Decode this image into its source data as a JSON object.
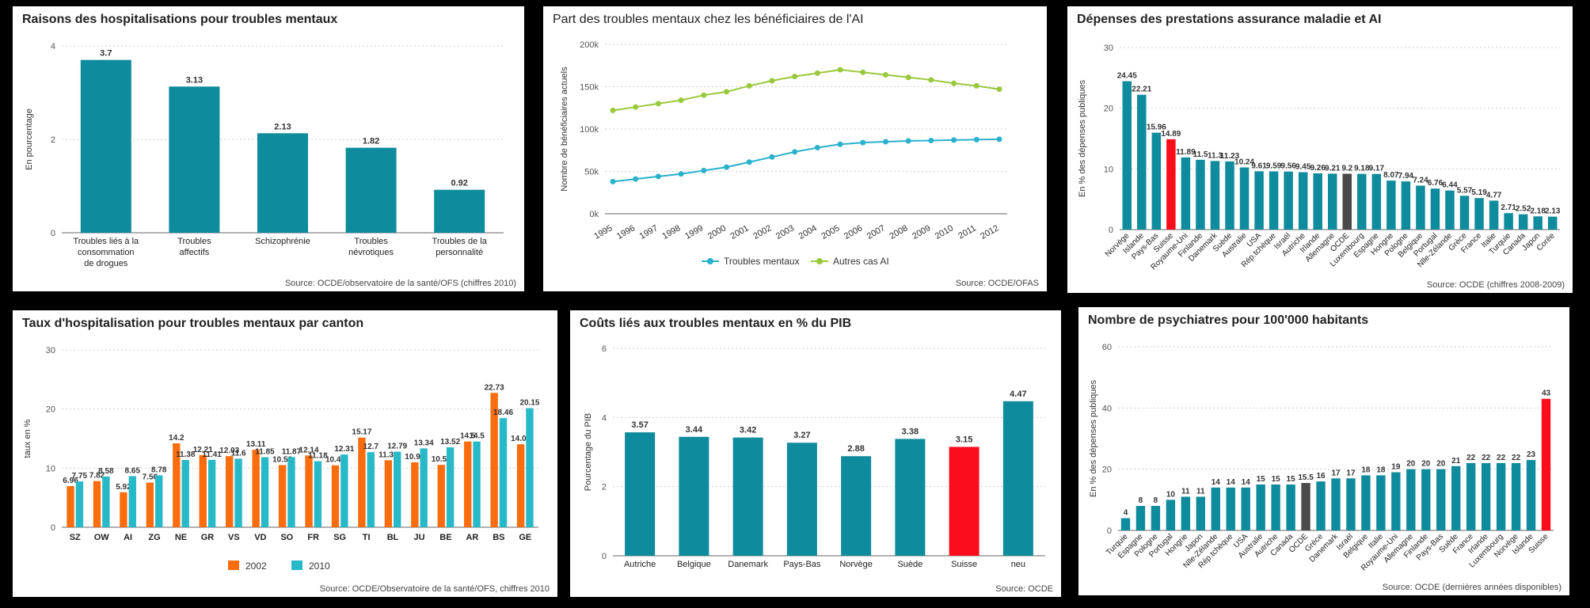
{
  "colors": {
    "teal": "#0e8b9c",
    "red": "#fb0d1c",
    "gray": "#4a4a4a",
    "orange": "#f96d0e",
    "cyan": "#28b9c9",
    "line1": "#2ab1cc",
    "line2": "#9ac83c"
  },
  "chart_data": [
    {
      "type": "bar",
      "title": "Raisons des hospitalisations pour troubles mentaux",
      "ylabel": "En pourcentage",
      "ylim": [
        0,
        4
      ],
      "yticks": [
        0,
        2,
        4
      ],
      "categories": [
        "Troubles liés à la consommation de drogues",
        "Troubles affectifs",
        "Schizophrénie",
        "Troubles névrotiques",
        "Troubles de la personnalité"
      ],
      "category_lines": [
        [
          "Troubles liés à la",
          "consommation",
          "de drogues"
        ],
        [
          "Troubles",
          "affectifs"
        ],
        [
          "Schizophrénie"
        ],
        [
          "Troubles",
          "névrotiques"
        ],
        [
          "Troubles de la",
          "personnalité"
        ]
      ],
      "values": [
        3.7,
        3.13,
        2.13,
        1.82,
        0.92
      ],
      "value_labels": [
        "3.7",
        "3.13",
        "2.13",
        "1.82",
        "0.92"
      ],
      "source": "Source: OCDE/observatoire de la santé/OFS (chiffres 2010)"
    },
    {
      "type": "line",
      "title": "Part des troubles mentaux chez les bénéficiaires de l'AI",
      "ylabel": "Nombre de bénéficiaires actuels",
      "ylim": [
        0,
        200000
      ],
      "yticks": [
        0,
        50000,
        100000,
        150000,
        200000
      ],
      "ytick_labels": [
        "0k",
        "50k",
        "100k",
        "150k",
        "200k"
      ],
      "x": [
        "1995",
        "1996",
        "1997",
        "1998",
        "1999",
        "2000",
        "2001",
        "2002",
        "2003",
        "2004",
        "2005",
        "2006",
        "2007",
        "2008",
        "2009",
        "2010",
        "2011",
        "2012"
      ],
      "series": [
        {
          "name": "Troubles mentaux",
          "values": [
            38000,
            41000,
            44000,
            47000,
            51000,
            55000,
            61000,
            67000,
            73000,
            78000,
            82000,
            84000,
            85000,
            86000,
            86500,
            87000,
            87500,
            88000
          ]
        },
        {
          "name": "Autres cas AI",
          "values": [
            122000,
            126000,
            130000,
            134000,
            140000,
            144000,
            151000,
            157000,
            162000,
            166000,
            170000,
            167000,
            164000,
            161000,
            158000,
            154000,
            151000,
            147000
          ]
        }
      ],
      "source": "Source: OCDE/OFAS"
    },
    {
      "type": "bar",
      "title": "Dépenses des prestations assurance maladie et AI",
      "ylabel": "En % des dépenses publiques",
      "ylim": [
        0,
        30
      ],
      "yticks": [
        0,
        10,
        20,
        30
      ],
      "categories": [
        "Norvège",
        "Islande",
        "Pays-Bas",
        "Suisse",
        "Royaume-Uni",
        "Finlande",
        "Danemark",
        "Suède",
        "Australie",
        "USA",
        "Rép.tchèque",
        "Israël",
        "Autriche",
        "Irlande",
        "Allemagne",
        "OCDE",
        "Luxembourg",
        "Espagne",
        "Hongrie",
        "Pologne",
        "Belgique",
        "Portugal",
        "Nlle-Zélande",
        "Grèce",
        "France",
        "Italie",
        "Turquie",
        "Canada",
        "Japon",
        "Corée"
      ],
      "values": [
        24.45,
        22.21,
        15.96,
        14.89,
        11.89,
        11.5,
        11.3,
        11.23,
        10.24,
        9.61,
        9.59,
        9.56,
        9.45,
        9.26,
        9.21,
        9.2,
        9.18,
        9.17,
        8.07,
        7.94,
        7.24,
        6.76,
        6.44,
        5.57,
        5.19,
        4.77,
        2.71,
        2.52,
        2.18,
        2.13
      ],
      "value_labels": [
        "24.45",
        "22.21",
        "15.96",
        "14.89",
        "11.89",
        "11.5",
        "11.3",
        "11.23",
        "10.24",
        "9.61",
        "9.59",
        "9.56",
        "9.45",
        "9.26",
        "9.21",
        "9.2",
        "9.18",
        "9.17",
        "8.07",
        "7.94",
        "7.24",
        "6.76",
        "6.44",
        "5.57",
        "5.19",
        "4.77",
        "2.71",
        "2.52",
        "2.18",
        "2.13"
      ],
      "highlight": {
        "Suisse": "red",
        "OCDE": "gray"
      },
      "source": "Source: OCDE (chiffres 2008-2009)"
    },
    {
      "type": "bar",
      "title": "Taux d'hospitalisation pour troubles mentaux par canton",
      "ylabel": "taux en %",
      "ylim": [
        0,
        30
      ],
      "yticks": [
        0,
        10,
        20,
        30
      ],
      "categories": [
        "SZ",
        "OW",
        "AI",
        "ZG",
        "NE",
        "GR",
        "VS",
        "VD",
        "SO",
        "FR",
        "SG",
        "TI",
        "BL",
        "JU",
        "BE",
        "AR",
        "BS",
        "GE"
      ],
      "series": [
        {
          "name": "2002",
          "values": [
            6.96,
            7.82,
            5.92,
            7.56,
            14.2,
            12.21,
            12.03,
            13.11,
            10.52,
            12.14,
            10.48,
            15.17,
            11.34,
            10.99,
            10.55,
            14.5,
            22.73,
            14.04
          ],
          "value_labels": [
            "6.96",
            "7.82",
            "5.92",
            "7.56",
            "14.2",
            "12.21",
            "12.03",
            "13.11",
            "10.52",
            "12.14",
            "10.48",
            "15.17",
            "11.34",
            "10.99",
            "10.55",
            "14.5",
            "22.73",
            "14.04"
          ]
        },
        {
          "name": "2010",
          "values": [
            7.75,
            8.58,
            8.65,
            8.78,
            11.38,
            11.41,
            11.6,
            11.85,
            11.87,
            11.18,
            12.31,
            12.7,
            12.79,
            13.34,
            13.52,
            14.5,
            18.46,
            20.15
          ],
          "value_labels": [
            "7.75",
            "8.58",
            "8.65",
            "8.78",
            "11.38",
            "11.41",
            "11.6",
            "11.85",
            "11.87",
            "11.18",
            "12.31",
            "12.7",
            "12.79",
            "13.34",
            "13.52",
            "14.5",
            "18.46",
            "20.15"
          ]
        }
      ],
      "source": "Source: OCDE/Observatoire de la santé/OFS, chiffres 2010"
    },
    {
      "type": "bar",
      "title": "Coûts liés aux troubles mentaux en % du PIB",
      "ylabel": "Pourcentage du PIB",
      "ylim": [
        0,
        6
      ],
      "yticks": [
        0,
        2,
        4,
        6
      ],
      "categories": [
        "Autriche",
        "Belgique",
        "Danemark",
        "Pays-Bas",
        "Norvège",
        "Suède",
        "Suisse",
        "neu"
      ],
      "values": [
        3.57,
        3.44,
        3.42,
        3.27,
        2.88,
        3.38,
        3.15,
        4.47
      ],
      "value_labels": [
        "3.57",
        "3.44",
        "3.42",
        "3.27",
        "2.88",
        "3.38",
        "3.15",
        "4.47"
      ],
      "highlight": {
        "Suisse": "red"
      },
      "source": "Source: OCDE"
    },
    {
      "type": "bar",
      "title": "Nombre de psychiatres pour 100'000 habitants",
      "ylabel": "En % des dépenses publiques",
      "ylim": [
        0,
        60
      ],
      "yticks": [
        0,
        20,
        40,
        60
      ],
      "categories": [
        "Turquie",
        "Espagne",
        "Pologne",
        "Portugal",
        "Hongrie",
        "Japon",
        "Nlle-Zélande",
        "Rép.tchèque",
        "USA",
        "Australie",
        "Autriche",
        "Canada",
        "OCDE",
        "Grèce",
        "Danemark",
        "Israël",
        "Belgique",
        "Italie",
        "Royaume-Uni",
        "Allemagne",
        "Finlande",
        "Pays-Bas",
        "Suède",
        "France",
        "Irlande",
        "Luxembourg",
        "Norvège",
        "Islande",
        "Suisse"
      ],
      "values": [
        4,
        8,
        8,
        10,
        11,
        11,
        14,
        14,
        14,
        15,
        15,
        15,
        15.5,
        16,
        17,
        17,
        18,
        18,
        19,
        20,
        20,
        20,
        21,
        22,
        22,
        22,
        22,
        23,
        43
      ],
      "value_labels": [
        "4",
        "8",
        "8",
        "10",
        "11",
        "11",
        "14",
        "14",
        "14",
        "15",
        "15",
        "15",
        "15.5",
        "16",
        "17",
        "17",
        "18",
        "18",
        "19",
        "20",
        "20",
        "20",
        "21",
        "22",
        "22",
        "22",
        "22",
        "23",
        "43"
      ],
      "highlight": {
        "Suisse": "red",
        "OCDE": "gray"
      },
      "source": "Source: OCDE (dernières années disponibles)"
    }
  ]
}
